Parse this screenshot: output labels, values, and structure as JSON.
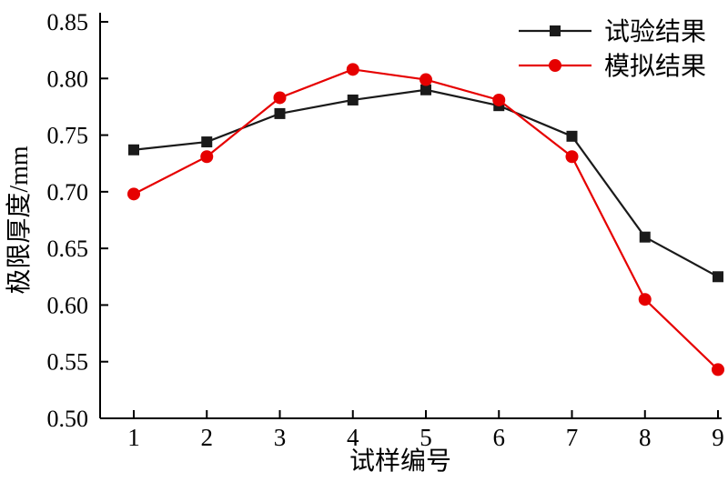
{
  "chart_data": {
    "type": "line",
    "x": [
      1,
      2,
      3,
      4,
      5,
      6,
      7,
      8,
      9
    ],
    "series": [
      {
        "name": "试验结果",
        "color": "#1a1a1a",
        "marker": "square",
        "values": [
          0.737,
          0.744,
          0.769,
          0.781,
          0.79,
          0.776,
          0.749,
          0.66,
          0.625
        ]
      },
      {
        "name": "模拟结果",
        "color": "#e60000",
        "marker": "circle",
        "values": [
          0.698,
          0.731,
          0.783,
          0.808,
          0.799,
          0.781,
          0.731,
          0.605,
          0.543
        ]
      }
    ],
    "title": "",
    "xlabel": "试样编号",
    "ylabel": "极限厚度/mm",
    "xlim": [
      1,
      9
    ],
    "ylim": [
      0.5,
      0.85
    ],
    "ytick_step": 0.05,
    "ytick_labels": [
      "0.50",
      "0.55",
      "0.60",
      "0.65",
      "0.70",
      "0.75",
      "0.80",
      "0.85"
    ],
    "xtick_labels": [
      "1",
      "2",
      "3",
      "4",
      "5",
      "6",
      "7",
      "8",
      "9"
    ],
    "grid": false,
    "legend_position": "top-right",
    "axis_color": "#000000",
    "background_color": "#ffffff"
  }
}
